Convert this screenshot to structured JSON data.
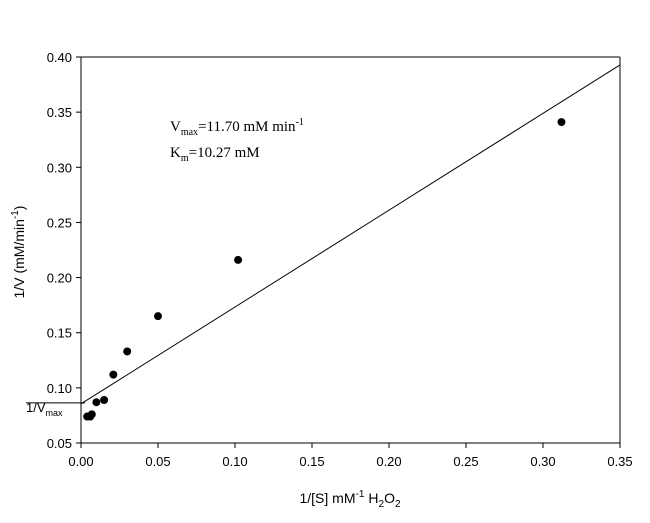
{
  "chart_data": {
    "type": "scatter",
    "xlabel": {
      "prefix": "1/[S] mM",
      "exponent": "-1",
      "species_main": "H",
      "species_sub": "2",
      "species_main2": "O",
      "species_sub2": "2"
    },
    "ylabel": {
      "prefix": "1/V (mM/min",
      "exponent": "-1",
      "suffix": ")"
    },
    "xlim": [
      0,
      0.35
    ],
    "ylim": [
      0.05,
      0.4
    ],
    "xticks": [
      "0.00",
      "0.05",
      "0.10",
      "0.15",
      "0.20",
      "0.25",
      "0.30",
      "0.35"
    ],
    "yticks": [
      "0.05",
      "0.10",
      "0.15",
      "0.20",
      "0.25",
      "0.30",
      "0.35",
      "0.40"
    ],
    "xtick_values": [
      0,
      0.05,
      0.1,
      0.15,
      0.2,
      0.25,
      0.3,
      0.35
    ],
    "ytick_values": [
      0.05,
      0.1,
      0.15,
      0.2,
      0.25,
      0.3,
      0.35,
      0.4
    ],
    "points": [
      {
        "x": 0.004,
        "y": 0.074
      },
      {
        "x": 0.006,
        "y": 0.074
      },
      {
        "x": 0.007,
        "y": 0.076
      },
      {
        "x": 0.01,
        "y": 0.087
      },
      {
        "x": 0.015,
        "y": 0.089
      },
      {
        "x": 0.021,
        "y": 0.112
      },
      {
        "x": 0.03,
        "y": 0.133
      },
      {
        "x": 0.05,
        "y": 0.165
      },
      {
        "x": 0.102,
        "y": 0.216
      },
      {
        "x": 0.312,
        "y": 0.341
      }
    ],
    "fit_line": {
      "intercept": 0.0855,
      "slope": 0.878
    },
    "annotations": {
      "vmax": {
        "main": "V",
        "sub": "max",
        "rest": "=11.70 mM min",
        "sup": "-1"
      },
      "km": {
        "main": "K",
        "sub": "m",
        "rest": "=10.27 mM"
      },
      "intercept_label": {
        "main": "1/V",
        "sub": "max"
      }
    },
    "grid": false,
    "legend": "none"
  }
}
